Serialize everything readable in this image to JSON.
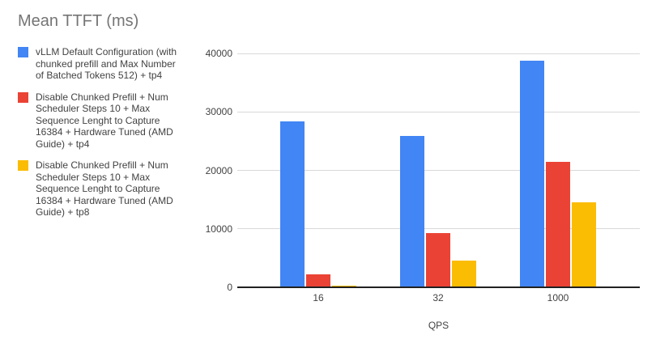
{
  "chart_data": {
    "type": "bar",
    "title": "Mean TTFT (ms)",
    "xlabel": "QPS",
    "ylabel": "",
    "categories": [
      "16",
      "32",
      "1000"
    ],
    "series": [
      {
        "name": "vLLM Default Configuration (with chunked prefill and Max Number of Batched Tokens 512) + tp4",
        "color": "#4285F4",
        "values": [
          28400,
          25900,
          38800
        ]
      },
      {
        "name": "Disable Chunked Prefill + Num Scheduler Steps 10 + Max Sequence Lenght to Capture 16384 + Hardware Tuned (AMD Guide) + tp4",
        "color": "#EA4335",
        "values": [
          2250,
          9300,
          21400
        ]
      },
      {
        "name": "Disable Chunked Prefill + Num Scheduler Steps 10 + Max Sequence Lenght to Capture 16384 + Hardware Tuned (AMD Guide) + tp8",
        "color": "#FBBC04",
        "values": [
          250,
          4600,
          14600
        ]
      }
    ],
    "ylim": [
      0,
      40000
    ],
    "yticks": [
      0,
      10000,
      20000,
      30000,
      40000
    ],
    "grid": true,
    "legend_position": "left",
    "colors": {
      "title_text": "#757575",
      "body_text": "#424242",
      "gridline": "#d9d9d9",
      "axis_line": "#212121",
      "background": "#ffffff"
    }
  }
}
